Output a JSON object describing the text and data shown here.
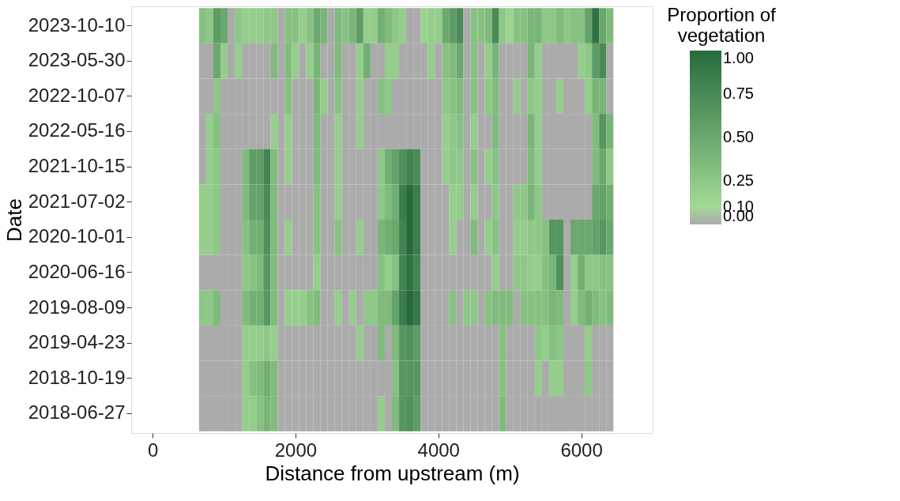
{
  "chart_data": {
    "type": "heatmap",
    "xlabel": "Distance from upstream (m)",
    "ylabel": "Date",
    "legend_title": "Proportion of\nvegetation",
    "x": [
      700,
      800,
      900,
      1000,
      1100,
      1200,
      1300,
      1400,
      1500,
      1600,
      1700,
      1800,
      1900,
      2000,
      2100,
      2200,
      2300,
      2400,
      2500,
      2600,
      2700,
      2800,
      2900,
      3000,
      3100,
      3200,
      3300,
      3400,
      3500,
      3600,
      3700,
      3800,
      3900,
      4000,
      4100,
      4200,
      4300,
      4400,
      4500,
      4600,
      4700,
      4800,
      4900,
      5000,
      5100,
      5200,
      5300,
      5400,
      5500,
      5600,
      5700,
      5800,
      5900,
      6000,
      6100,
      6200,
      6300,
      6400
    ],
    "xlim": [
      -300,
      7000
    ],
    "xticks": [
      0,
      {
        "value": 2000,
        "label": "2000"
      },
      {
        "value": 4000,
        "label": "4000"
      },
      {
        "value": 6000,
        "label": "6000"
      }
    ],
    "y_categories": [
      "2023-10-10",
      "2023-05-30",
      "2022-10-07",
      "2022-05-16",
      "2021-10-15",
      "2021-07-02",
      "2020-10-01",
      "2020-06-16",
      "2019-08-09",
      "2019-04-23",
      "2018-10-19",
      "2018-06-27"
    ],
    "cells": [
      [
        0.3,
        0.25,
        0.6,
        0.5,
        0,
        0.25,
        0.2,
        0.2,
        0.2,
        0.25,
        0.25,
        0,
        0.3,
        0.3,
        0.2,
        0.3,
        0.5,
        0.4,
        0,
        0.35,
        0.3,
        0.4,
        0.6,
        0.2,
        0.2,
        0.45,
        0.35,
        0.25,
        0.2,
        0,
        0,
        0.15,
        0.2,
        0.2,
        0.5,
        0.6,
        0.75,
        0,
        0.3,
        0.3,
        0.35,
        0.75,
        0.25,
        0.15,
        0.3,
        0.3,
        0.4,
        0.4,
        0.25,
        0.25,
        0.35,
        0.25,
        0.3,
        0.3,
        0.55,
        0.95,
        0.5,
        0.35
      ],
      [
        0,
        0,
        0.5,
        0.2,
        0,
        0.2,
        0,
        0,
        0,
        0,
        0.35,
        0,
        0.35,
        0.2,
        0,
        0.2,
        0.4,
        0,
        0,
        0.35,
        0,
        0,
        0.2,
        0.45,
        0,
        0,
        0.2,
        0.2,
        0,
        0,
        0,
        0,
        0.2,
        0,
        0.3,
        0.35,
        0.5,
        0,
        0.3,
        0,
        0.2,
        0.4,
        0,
        0,
        0,
        0,
        0.4,
        0.2,
        0,
        0,
        0,
        0,
        0,
        0.2,
        0.25,
        0.6,
        0.75,
        0
      ],
      [
        0,
        0,
        0.25,
        0,
        0,
        0,
        0,
        0,
        0,
        0,
        0,
        0,
        0.3,
        0,
        0,
        0,
        0.4,
        0.2,
        0,
        0.3,
        0,
        0,
        0.2,
        0,
        0,
        0.3,
        0.25,
        0,
        0,
        0,
        0,
        0,
        0,
        0,
        0.25,
        0.3,
        0.35,
        0,
        0.3,
        0,
        0.25,
        0.35,
        0,
        0,
        0.2,
        0,
        0.25,
        0.2,
        0,
        0,
        0.2,
        0,
        0,
        0,
        0.2,
        0.4,
        0.4,
        0
      ],
      [
        0,
        0.2,
        0.3,
        0,
        0,
        0,
        0,
        0,
        0,
        0,
        0.2,
        0,
        0.2,
        0,
        0,
        0,
        0.35,
        0,
        0,
        0.2,
        0,
        0,
        0.2,
        0,
        0,
        0,
        0,
        0,
        0,
        0,
        0,
        0,
        0,
        0,
        0.2,
        0.25,
        0.3,
        0,
        0.2,
        0,
        0,
        0.35,
        0,
        0,
        0,
        0,
        0.4,
        0.2,
        0,
        0,
        0,
        0,
        0,
        0,
        0,
        0.35,
        0.65,
        0.4
      ],
      [
        0,
        0.2,
        0.25,
        0,
        0,
        0,
        0.35,
        0.6,
        0.6,
        0.8,
        0.35,
        0,
        0.2,
        0,
        0,
        0,
        0.35,
        0,
        0,
        0.2,
        0,
        0,
        0,
        0,
        0,
        0.25,
        0.45,
        0.55,
        0.7,
        0.8,
        0.75,
        0,
        0,
        0,
        0.2,
        0.25,
        0.25,
        0,
        0.3,
        0,
        0.2,
        0.3,
        0,
        0,
        0,
        0,
        0.35,
        0.2,
        0,
        0,
        0,
        0,
        0,
        0,
        0,
        0.35,
        0.5,
        0.25
      ],
      [
        0.2,
        0.2,
        0.25,
        0,
        0,
        0,
        0.35,
        0.55,
        0.55,
        0.75,
        0.35,
        0,
        0,
        0,
        0,
        0,
        0.3,
        0,
        0,
        0.2,
        0,
        0,
        0,
        0,
        0,
        0.25,
        0.35,
        0.45,
        0.85,
        1.0,
        0.85,
        0,
        0,
        0,
        0,
        0.2,
        0.2,
        0,
        0.2,
        0,
        0,
        0.25,
        0,
        0,
        0.25,
        0.25,
        0.4,
        0.25,
        0,
        0,
        0,
        0,
        0,
        0,
        0,
        0.5,
        0.55,
        0.45
      ],
      [
        0.2,
        0.2,
        0.25,
        0,
        0,
        0,
        0.3,
        0.45,
        0.45,
        0.7,
        0.35,
        0,
        0.2,
        0,
        0,
        0,
        0.3,
        0,
        0,
        0.3,
        0,
        0,
        0.2,
        0,
        0,
        0.4,
        0.45,
        0.5,
        0.8,
        1.0,
        0.85,
        0,
        0,
        0,
        0,
        0.2,
        0,
        0,
        0.35,
        0,
        0.2,
        0.3,
        0,
        0,
        0.2,
        0.2,
        0.25,
        0.25,
        0.3,
        0.65,
        0.65,
        0,
        0.5,
        0.5,
        0.5,
        0.55,
        0.65,
        0.5
      ],
      [
        0,
        0,
        0,
        0,
        0,
        0,
        0.25,
        0.3,
        0.35,
        0.65,
        0.35,
        0,
        0,
        0,
        0,
        0,
        0.2,
        0,
        0,
        0,
        0,
        0,
        0,
        0,
        0,
        0.3,
        0.2,
        0.3,
        0.8,
        0.95,
        0.8,
        0,
        0,
        0,
        0,
        0,
        0,
        0,
        0,
        0,
        0,
        0.2,
        0,
        0,
        0.25,
        0.25,
        0.2,
        0.2,
        0.3,
        0.4,
        0.7,
        0,
        0.2,
        0.45,
        0.25,
        0.25,
        0.3,
        0.3
      ],
      [
        0.25,
        0.25,
        0.35,
        0,
        0,
        0,
        0.35,
        0.45,
        0.45,
        0.65,
        0.35,
        0,
        0.2,
        0.2,
        0.2,
        0.3,
        0.35,
        0,
        0,
        0.2,
        0,
        0.2,
        0,
        0.25,
        0.25,
        0.35,
        0.35,
        0.55,
        0.85,
        1.0,
        0.9,
        0,
        0,
        0,
        0,
        0.3,
        0,
        0.25,
        0.25,
        0,
        0.3,
        0.35,
        0.35,
        0.35,
        0,
        0.3,
        0.3,
        0.3,
        0.3,
        0.4,
        0.35,
        0,
        0.2,
        0.35,
        0.45,
        0.35,
        0.3,
        0.35
      ],
      [
        0,
        0,
        0,
        0,
        0,
        0,
        0.2,
        0.2,
        0.2,
        0.25,
        0.2,
        0,
        0,
        0,
        0,
        0,
        0,
        0,
        0,
        0,
        0,
        0,
        0.2,
        0,
        0,
        0.35,
        0,
        0.35,
        0.65,
        0.7,
        0.6,
        0,
        0,
        0,
        0,
        0,
        0,
        0,
        0,
        0,
        0,
        0,
        0.3,
        0,
        0,
        0,
        0,
        0.25,
        0.2,
        0.3,
        0.25,
        0,
        0,
        0,
        0.2,
        0,
        0,
        0
      ],
      [
        0,
        0,
        0,
        0,
        0,
        0,
        0.2,
        0.3,
        0.35,
        0.45,
        0.35,
        0,
        0,
        0,
        0,
        0,
        0,
        0,
        0,
        0,
        0,
        0,
        0,
        0,
        0,
        0,
        0,
        0.3,
        0.65,
        0.65,
        0.65,
        0,
        0,
        0,
        0,
        0,
        0,
        0,
        0,
        0,
        0,
        0,
        0.3,
        0,
        0,
        0,
        0,
        0.2,
        0,
        0.2,
        0.2,
        0,
        0,
        0,
        0.25,
        0,
        0,
        0
      ],
      [
        0,
        0,
        0,
        0,
        0,
        0,
        0.2,
        0.2,
        0.3,
        0.4,
        0.35,
        0,
        0,
        0,
        0,
        0,
        0,
        0,
        0,
        0,
        0,
        0,
        0,
        0,
        0,
        0.2,
        0,
        0.35,
        0.65,
        0.7,
        0.6,
        0,
        0,
        0,
        0,
        0,
        0,
        0,
        0,
        0,
        0,
        0,
        0.35,
        0,
        0,
        0,
        0,
        0,
        0,
        0,
        0,
        0,
        0,
        0,
        0,
        0,
        0,
        0
      ]
    ],
    "clim": [
      0,
      1
    ],
    "cticks": [
      {
        "value": 0,
        "label": "0.00"
      },
      {
        "value": 0.1,
        "label": "0.10"
      },
      {
        "value": 0.25,
        "label": "0.25"
      },
      {
        "value": 0.5,
        "label": "0.50"
      },
      {
        "value": 0.75,
        "label": "0.75"
      },
      {
        "value": 1,
        "label": "1.00"
      }
    ]
  }
}
